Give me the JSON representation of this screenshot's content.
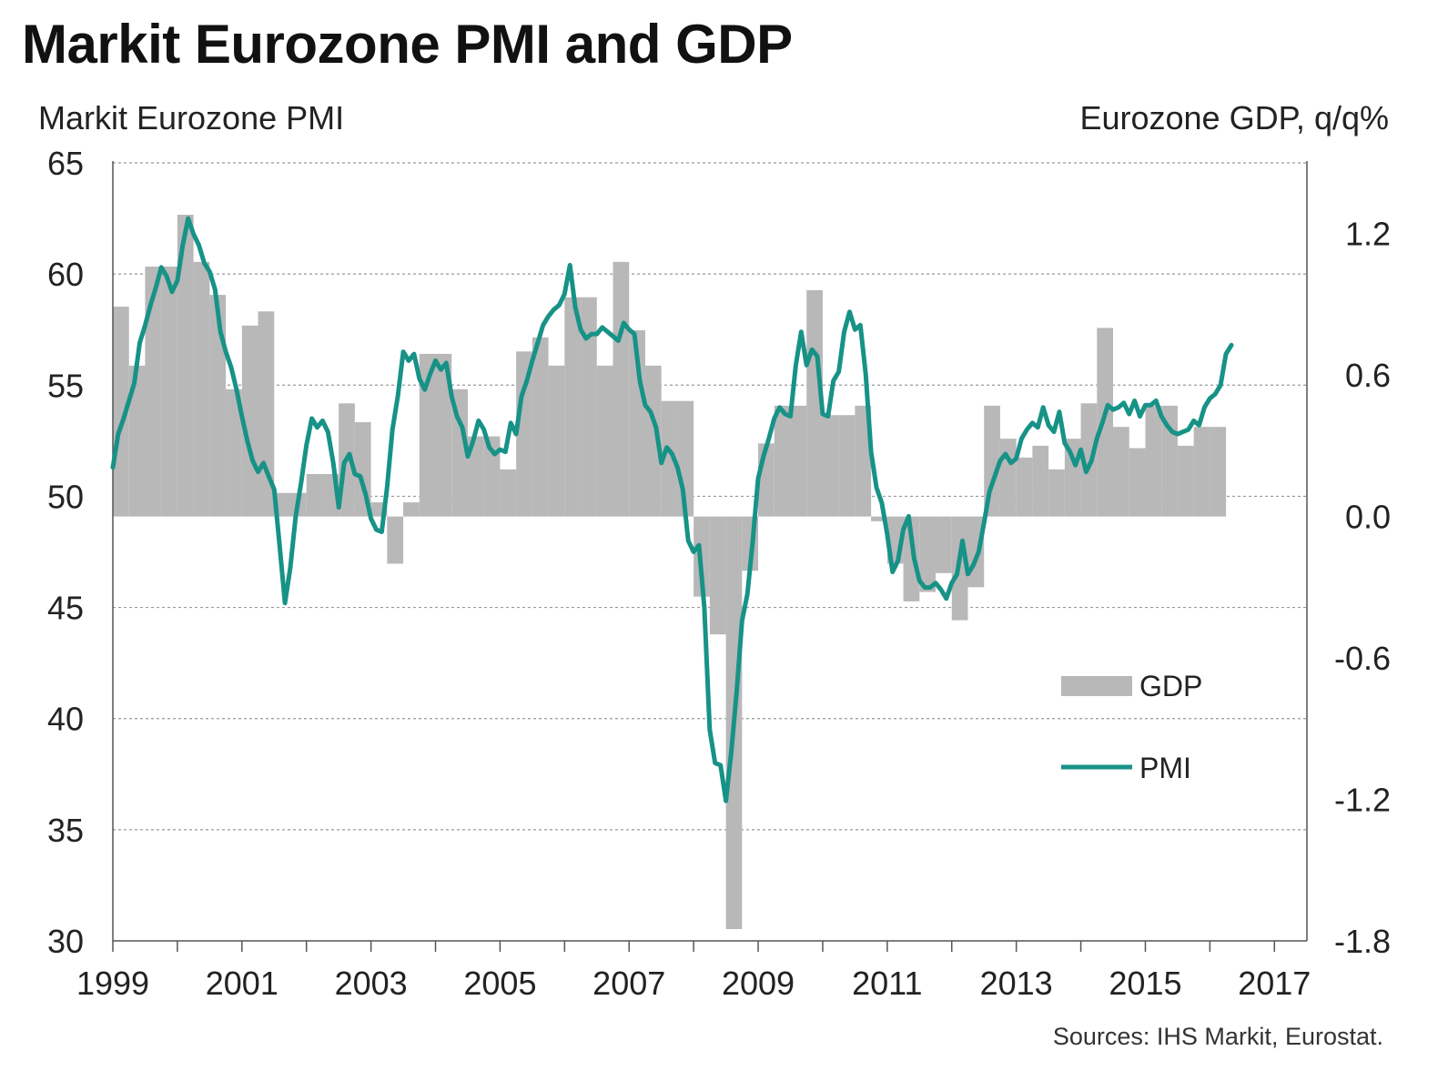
{
  "title": "Markit Eurozone PMI and GDP",
  "chart_data": {
    "type": "bar+line",
    "title": "Markit Eurozone PMI and GDP",
    "left_axis_label": "Markit Eurozone PMI",
    "right_axis_label": "Eurozone GDP, q/q%",
    "left_ylim": [
      30,
      65
    ],
    "left_ticks": [
      "65",
      "60",
      "55",
      "50",
      "45",
      "40",
      "35",
      "30"
    ],
    "right_ylim": [
      -1.8,
      1.5
    ],
    "right_ticks": [
      "1.2",
      "0.6",
      "0.0",
      "-0.6",
      "-1.2",
      "-1.8"
    ],
    "x_ticks": [
      "1999",
      "2001",
      "2003",
      "2005",
      "2007",
      "2009",
      "2011",
      "2013",
      "2015",
      "2017"
    ],
    "xlim": [
      1999.0,
      2017.25
    ],
    "grid": "horizontal dashed",
    "source": "Sources: IHS Markit, Eurostat.",
    "colors": {
      "gdp": "#b8b8b8",
      "pmi": "#179287",
      "grid": "#999999",
      "axis": "#555555"
    },
    "legend": [
      {
        "label": "GDP",
        "style": "bar"
      },
      {
        "label": "PMI",
        "style": "line"
      }
    ],
    "series": [
      {
        "name": "GDP",
        "type": "bar",
        "axis": "right",
        "start": 1999.0,
        "step": 0.25,
        "values": [
          0.89,
          0.64,
          1.06,
          1.06,
          1.28,
          1.08,
          0.94,
          0.54,
          0.81,
          0.87,
          0.1,
          0.1,
          0.18,
          0.18,
          0.48,
          0.4,
          0.06,
          -0.2,
          0.06,
          0.69,
          0.69,
          0.54,
          0.34,
          0.34,
          0.2,
          0.7,
          0.76,
          0.64,
          0.93,
          0.93,
          0.64,
          1.08,
          0.79,
          0.64,
          0.49,
          0.49,
          -0.34,
          -0.5,
          -1.75,
          -0.23,
          0.31,
          0.47,
          0.47,
          0.96,
          0.43,
          0.43,
          0.47,
          -0.02,
          -0.2,
          -0.36,
          -0.32,
          -0.24,
          -0.44,
          -0.3,
          0.47,
          0.33,
          0.25,
          0.3,
          0.2,
          0.33,
          0.48,
          0.8,
          0.38,
          0.29,
          0.47,
          0.47,
          0.3,
          0.38,
          0.38
        ]
      },
      {
        "name": "PMI",
        "type": "line",
        "axis": "left",
        "start": 1999.0,
        "step": 0.08333,
        "values": [
          51.3,
          52.8,
          53.5,
          54.3,
          55.1,
          56.9,
          57.7,
          58.6,
          59.4,
          60.3,
          59.9,
          59.2,
          59.7,
          61.3,
          62.5,
          61.8,
          61.3,
          60.5,
          60.1,
          59.3,
          57.4,
          56.5,
          55.8,
          54.8,
          53.6,
          52.5,
          51.6,
          51.1,
          51.5,
          50.9,
          50.3,
          47.8,
          45.2,
          46.8,
          49.1,
          50.6,
          52.3,
          53.5,
          53.1,
          53.4,
          52.9,
          51.5,
          49.5,
          51.5,
          51.9,
          51.0,
          50.9,
          50.1,
          49.0,
          48.5,
          48.4,
          50.4,
          53.0,
          54.5,
          56.5,
          56.1,
          56.4,
          55.3,
          54.8,
          55.5,
          56.1,
          55.7,
          56.0,
          54.5,
          53.6,
          53.1,
          51.8,
          52.5,
          53.4,
          53.0,
          52.2,
          51.9,
          52.1,
          52.0,
          53.3,
          52.8,
          54.5,
          55.2,
          56.1,
          56.9,
          57.7,
          58.1,
          58.4,
          58.6,
          59.1,
          60.4,
          58.5,
          57.5,
          57.1,
          57.3,
          57.3,
          57.6,
          57.4,
          57.2,
          57.0,
          57.8,
          57.5,
          57.3,
          55.2,
          54.1,
          53.8,
          53.1,
          51.5,
          52.2,
          51.9,
          51.3,
          50.3,
          48.0,
          47.5,
          47.8,
          45.0,
          39.5,
          38.0,
          37.9,
          36.3,
          38.5,
          41.2,
          44.4,
          45.6,
          48.0,
          50.8,
          51.8,
          52.6,
          53.5,
          54.0,
          53.7,
          53.6,
          55.9,
          57.4,
          55.9,
          56.6,
          56.3,
          53.7,
          53.6,
          55.2,
          55.6,
          57.4,
          58.3,
          57.5,
          57.7,
          55.5,
          52.0,
          50.4,
          49.7,
          48.3,
          46.6,
          47.1,
          48.5,
          49.1,
          47.2,
          46.2,
          45.9,
          45.9,
          46.1,
          45.8,
          45.4,
          46.1,
          46.5,
          48.0,
          46.5,
          46.9,
          47.5,
          48.8,
          50.2,
          50.9,
          51.6,
          51.9,
          51.5,
          51.7,
          52.6,
          53.0,
          53.3,
          53.1,
          54.0,
          53.2,
          52.9,
          53.8,
          52.4,
          52.0,
          51.4,
          52.1,
          51.1,
          51.6,
          52.6,
          53.3,
          54.1,
          53.9,
          54.0,
          54.2,
          53.7,
          54.3,
          53.6,
          54.1,
          54.1,
          54.3,
          53.6,
          53.2,
          52.9,
          52.8,
          52.9,
          53.0,
          53.4,
          53.2,
          54.0,
          54.4,
          54.6,
          55.0,
          56.4,
          56.8
        ]
      }
    ]
  }
}
